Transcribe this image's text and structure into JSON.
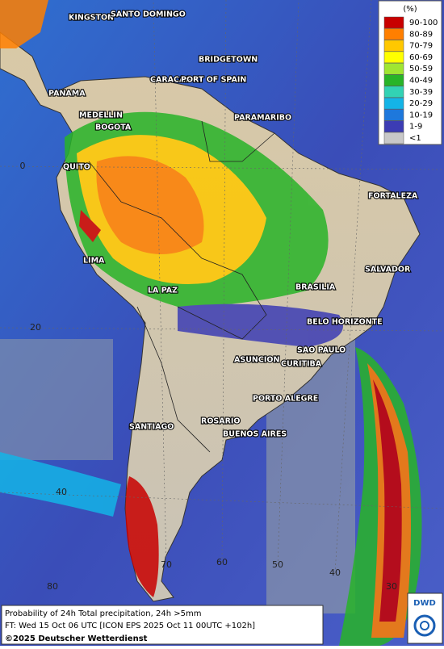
{
  "legend": {
    "title": "(%)",
    "items": [
      {
        "label": "90-100",
        "color": "#c80000"
      },
      {
        "label": "80-89",
        "color": "#ff7f00"
      },
      {
        "label": "70-79",
        "color": "#ffc800"
      },
      {
        "label": "60-69",
        "color": "#ffff00"
      },
      {
        "label": "50-59",
        "color": "#a0e632"
      },
      {
        "label": "40-49",
        "color": "#28b428"
      },
      {
        "label": "30-39",
        "color": "#32d2b4"
      },
      {
        "label": "20-29",
        "color": "#14b4e6"
      },
      {
        "label": "10-19",
        "color": "#1e78dc"
      },
      {
        "label": "1-9",
        "color": "#3c3cb4"
      },
      {
        "label": "<1",
        "color": "#c8c8c8"
      }
    ]
  },
  "cities": [
    "KINGSTON",
    "SANTO DOMINGO",
    "BRIDGETOWN",
    "CARACAS",
    "PORT OF SPAIN",
    "PANAMA",
    "MEDELLIN",
    "BOGOTA",
    "PARAMARIBO",
    "QUITO",
    "FORTALEZA",
    "LIMA",
    "SALVADOR",
    "BRASILIA",
    "LA PAZ",
    "BELO HORIZONTE",
    "SAO PAULO",
    "ASUNCION",
    "CURITIBA",
    "PORTO ALEGRE",
    "ROSARIO",
    "BUENOS AIRES",
    "SANTIAGO"
  ],
  "grid_labels": [
    "0",
    "20",
    "40",
    "80",
    "70",
    "60",
    "50",
    "40",
    "30"
  ],
  "caption": {
    "line1": "Probability of 24h Total precipitation, 24h >5mm",
    "line2": "FT: Wed 15 Oct 06 UTC [ICON EPS 2025 Oct 11 00UTC +102h]",
    "line3": "©2025 Deutscher Wetterdienst"
  },
  "logo": "DWD"
}
